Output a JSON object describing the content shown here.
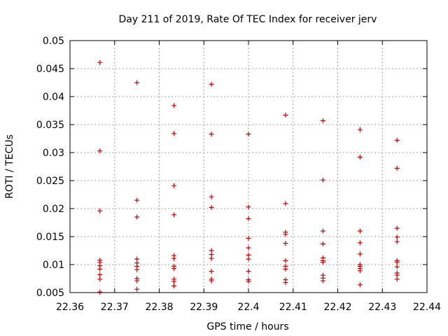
{
  "chart_data": {
    "type": "scatter",
    "title": "Day 211 of 2019, Rate Of TEC Index for receiver jerv",
    "xlabel": "GPS time / hours",
    "ylabel": "ROTI / TECUs",
    "xlim": [
      22.36,
      22.44
    ],
    "ylim": [
      0.005,
      0.05
    ],
    "xticks": [
      22.36,
      22.37,
      22.38,
      22.39,
      22.4,
      22.41,
      22.42,
      22.43,
      22.44
    ],
    "xtick_labels": [
      "22.36",
      "22.37",
      "22.38",
      "22.39",
      "22.4",
      "22.41",
      "22.42",
      "22.43",
      "22.44"
    ],
    "yticks": [
      0.005,
      0.01,
      0.015,
      0.02,
      0.025,
      0.03,
      0.035,
      0.04,
      0.045,
      0.05
    ],
    "ytick_labels": [
      "0.005",
      "0.01",
      "0.015",
      "0.02",
      "0.025",
      "0.03",
      "0.035",
      "0.04",
      "0.045",
      "0.05"
    ],
    "grid": true,
    "marker": "+",
    "color": "#cc0000",
    "series": [
      {
        "name": "ROTI",
        "points": [
          [
            22.3667,
            0.0461
          ],
          [
            22.3667,
            0.0303
          ],
          [
            22.3667,
            0.0196
          ],
          [
            22.3667,
            0.0108
          ],
          [
            22.3667,
            0.0104
          ],
          [
            22.3667,
            0.0098
          ],
          [
            22.3667,
            0.0092
          ],
          [
            22.3667,
            0.0082
          ],
          [
            22.3667,
            0.0074
          ],
          [
            22.3667,
            0.0051
          ],
          [
            22.375,
            0.0425
          ],
          [
            22.375,
            0.0215
          ],
          [
            22.375,
            0.0185
          ],
          [
            22.375,
            0.011
          ],
          [
            22.375,
            0.0103
          ],
          [
            22.375,
            0.0097
          ],
          [
            22.375,
            0.0091
          ],
          [
            22.375,
            0.0075
          ],
          [
            22.375,
            0.0071
          ],
          [
            22.375,
            0.0056
          ],
          [
            22.3833,
            0.0384
          ],
          [
            22.3833,
            0.0334
          ],
          [
            22.3833,
            0.0241
          ],
          [
            22.3833,
            0.0189
          ],
          [
            22.3833,
            0.0116
          ],
          [
            22.3833,
            0.0111
          ],
          [
            22.3833,
            0.0097
          ],
          [
            22.3833,
            0.0093
          ],
          [
            22.3833,
            0.0074
          ],
          [
            22.3833,
            0.007
          ],
          [
            22.3833,
            0.0062
          ],
          [
            22.3917,
            0.0422
          ],
          [
            22.3917,
            0.0333
          ],
          [
            22.3917,
            0.0221
          ],
          [
            22.3917,
            0.0202
          ],
          [
            22.3917,
            0.0125
          ],
          [
            22.3917,
            0.0118
          ],
          [
            22.3917,
            0.0111
          ],
          [
            22.3917,
            0.0088
          ],
          [
            22.3917,
            0.0074
          ],
          [
            22.3917,
            0.0071
          ],
          [
            22.4,
            0.0333
          ],
          [
            22.4,
            0.0203
          ],
          [
            22.4,
            0.0182
          ],
          [
            22.4,
            0.0147
          ],
          [
            22.4,
            0.013
          ],
          [
            22.4,
            0.0117
          ],
          [
            22.4,
            0.011
          ],
          [
            22.4,
            0.0088
          ],
          [
            22.4,
            0.0073
          ],
          [
            22.4,
            0.007
          ],
          [
            22.4083,
            0.0367
          ],
          [
            22.4083,
            0.0209
          ],
          [
            22.4083,
            0.0158
          ],
          [
            22.4083,
            0.0154
          ],
          [
            22.4083,
            0.0138
          ],
          [
            22.4083,
            0.0107
          ],
          [
            22.4083,
            0.0097
          ],
          [
            22.4083,
            0.0092
          ],
          [
            22.4083,
            0.0073
          ],
          [
            22.4083,
            0.0068
          ],
          [
            22.4167,
            0.0357
          ],
          [
            22.4167,
            0.0251
          ],
          [
            22.4167,
            0.016
          ],
          [
            22.4167,
            0.0137
          ],
          [
            22.4167,
            0.0112
          ],
          [
            22.4167,
            0.0107
          ],
          [
            22.4167,
            0.0104
          ],
          [
            22.4167,
            0.0081
          ],
          [
            22.4167,
            0.0076
          ],
          [
            22.4167,
            0.0071
          ],
          [
            22.425,
            0.0341
          ],
          [
            22.425,
            0.0292
          ],
          [
            22.425,
            0.016
          ],
          [
            22.425,
            0.0139
          ],
          [
            22.425,
            0.0119
          ],
          [
            22.425,
            0.01
          ],
          [
            22.425,
            0.0097
          ],
          [
            22.425,
            0.0093
          ],
          [
            22.425,
            0.0089
          ],
          [
            22.425,
            0.0064
          ],
          [
            22.4333,
            0.0322
          ],
          [
            22.4333,
            0.0272
          ],
          [
            22.4333,
            0.0165
          ],
          [
            22.4333,
            0.0149
          ],
          [
            22.4333,
            0.0141
          ],
          [
            22.4333,
            0.0107
          ],
          [
            22.4333,
            0.0104
          ],
          [
            22.4333,
            0.0096
          ],
          [
            22.4333,
            0.0085
          ],
          [
            22.4333,
            0.0081
          ],
          [
            22.4333,
            0.0074
          ]
        ]
      }
    ]
  }
}
